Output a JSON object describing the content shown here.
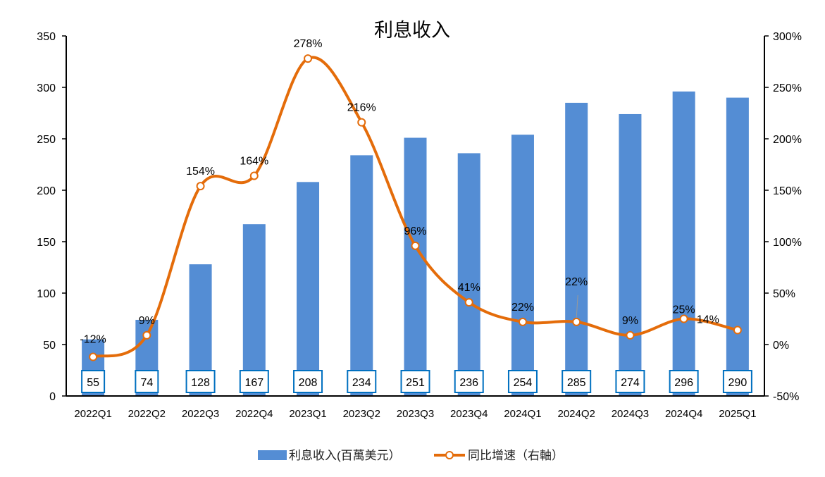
{
  "chart_data": {
    "type": "bar+line",
    "title": "利息收入",
    "categories": [
      "2022Q1",
      "2022Q2",
      "2022Q3",
      "2022Q4",
      "2023Q1",
      "2023Q2",
      "2023Q3",
      "2023Q4",
      "2024Q1",
      "2024Q2",
      "2024Q3",
      "2024Q4",
      "2025Q1"
    ],
    "series": [
      {
        "name": "利息收入(百萬美元）",
        "type": "bar",
        "axis": "left",
        "color": "#548DD4",
        "values": [
          55,
          74,
          128,
          167,
          208,
          234,
          251,
          236,
          254,
          285,
          274,
          296,
          290
        ],
        "labels": [
          "55",
          "74",
          "128",
          "167",
          "208",
          "234",
          "251",
          "236",
          "254",
          "285",
          "274",
          "296",
          "290"
        ]
      },
      {
        "name": "同比增速（右軸）",
        "type": "line",
        "axis": "right",
        "color": "#E46C0A",
        "values": [
          -12,
          9,
          154,
          164,
          278,
          216,
          96,
          41,
          22,
          22,
          9,
          25,
          14
        ],
        "labels": [
          "-12%",
          "9%",
          "154%",
          "164%",
          "278%",
          "216%",
          "96%",
          "41%",
          "22%",
          "22%",
          "9%",
          "25%",
          "14%"
        ]
      }
    ],
    "left_axis": {
      "ylim": [
        0,
        350
      ],
      "ticks": [
        "0",
        "50",
        "100",
        "150",
        "200",
        "250",
        "300",
        "350"
      ]
    },
    "right_axis": {
      "ylim": [
        -50,
        300
      ],
      "unit": "%",
      "ticks": [
        "-50%",
        "0%",
        "50%",
        "100%",
        "150%",
        "200%",
        "250%",
        "300%"
      ]
    },
    "grid": false,
    "legend": "bottom"
  }
}
